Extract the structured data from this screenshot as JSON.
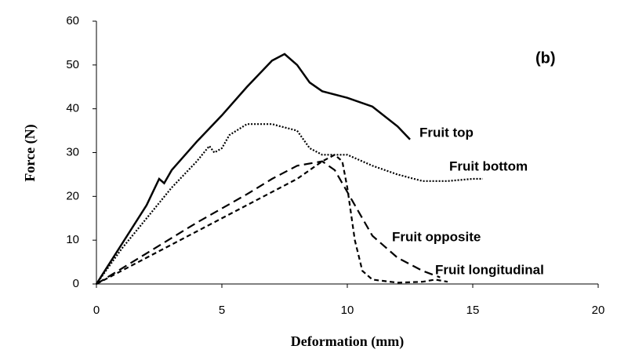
{
  "chart_data": {
    "type": "line",
    "annotation": "(b)",
    "x_label": "Deformation  (mm)",
    "y_label": "Force (N)",
    "xlim": [
      0,
      20
    ],
    "xticks": [
      0,
      5,
      10,
      15,
      20
    ],
    "ylim": [
      0,
      60
    ],
    "yticks": [
      0,
      10,
      20,
      30,
      40,
      50,
      60
    ],
    "grid": false,
    "series": [
      {
        "name": "Fruit top",
        "color": "#000000",
        "style": "solid",
        "x": [
          0,
          1,
          2,
          2.5,
          2.7,
          3,
          4,
          5,
          6,
          7,
          7.5,
          8,
          8.5,
          9,
          10,
          11,
          12,
          12.5
        ],
        "values": [
          0,
          9,
          18,
          24,
          23,
          26,
          32.5,
          38.5,
          45,
          51,
          52.5,
          50,
          46,
          44,
          42.5,
          40.5,
          36,
          33
        ]
      },
      {
        "name": "Fruit bottom",
        "color": "#000000",
        "style": "dotted",
        "x": [
          0,
          1,
          2,
          3,
          4,
          4.5,
          4.7,
          5,
          5.3,
          6,
          7,
          8,
          8.5,
          9,
          10,
          11,
          12,
          13,
          14,
          15,
          15.4
        ],
        "values": [
          0,
          8,
          15,
          22,
          28,
          31.5,
          30,
          31,
          34,
          36.5,
          36.5,
          35,
          31,
          29.5,
          29.5,
          27,
          25,
          23.5,
          23.5,
          24,
          24
        ]
      },
      {
        "name": "Fruit opposite",
        "color": "#000000",
        "style": "long-dash",
        "x": [
          0,
          2,
          4,
          6,
          7,
          8,
          9,
          9.5,
          10,
          10.5,
          11,
          12,
          13,
          13.7
        ],
        "values": [
          0,
          7,
          14,
          20.5,
          24,
          27,
          28,
          26,
          21,
          16,
          11,
          6,
          3,
          1.5
        ]
      },
      {
        "name": "Fruit longitudinal",
        "color": "#000000",
        "style": "dash",
        "x": [
          0,
          2,
          4,
          6,
          8,
          9,
          9.5,
          9.8,
          10,
          10.3,
          10.6,
          11,
          12,
          13,
          13.5,
          14
        ],
        "values": [
          0,
          6,
          12,
          18,
          24,
          28,
          29.5,
          28,
          22,
          10,
          3,
          1,
          0.3,
          0.5,
          1,
          0.5
        ]
      }
    ]
  }
}
